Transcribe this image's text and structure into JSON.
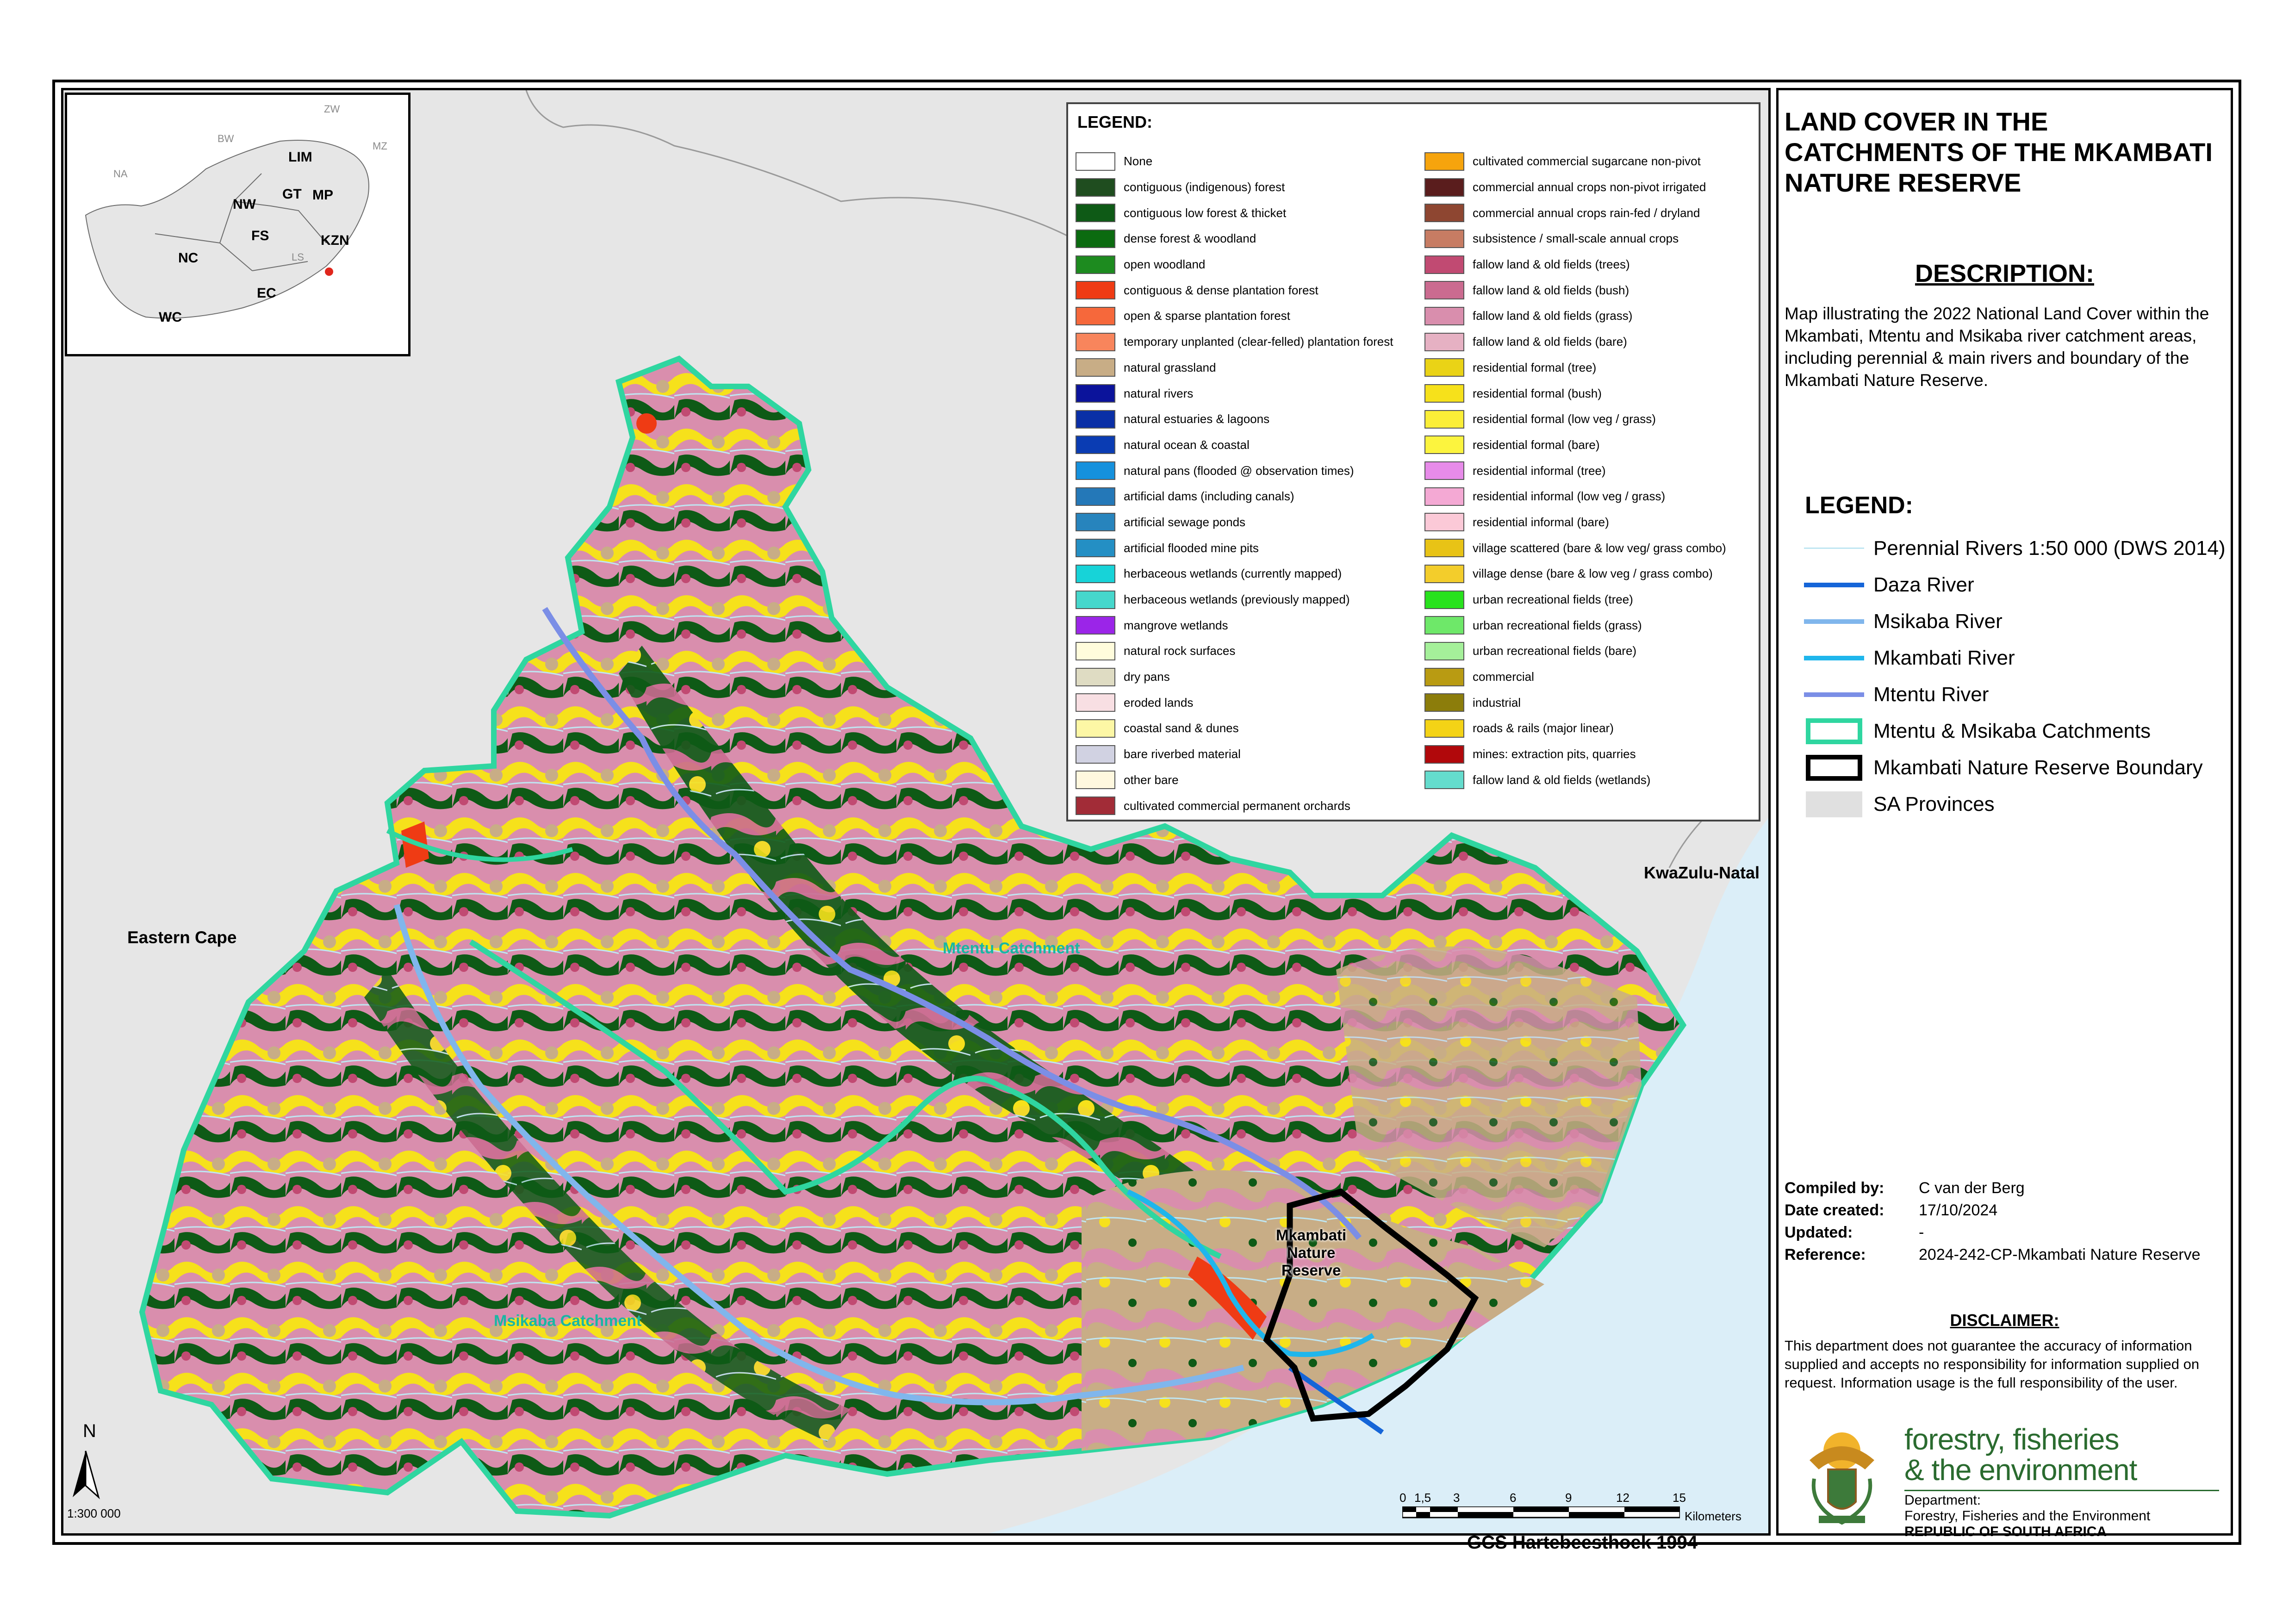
{
  "map": {
    "region_labels": {
      "eastern_cape": "Eastern Cape",
      "kwazulu_natal": "KwaZulu-Natal"
    },
    "catchment_labels": {
      "mtentu": "Mtentu Catchment",
      "msikaba": "Msikaba Catchment",
      "reserve_line1": "Mkambati",
      "reserve_line2": "Nature",
      "reserve_line3": "Reserve"
    },
    "north_label": "N",
    "scale_ratio": "1:300 000",
    "scale_bar": {
      "ticks": [
        "0",
        "1,5",
        "3",
        "6",
        "9",
        "12",
        "15"
      ],
      "unit": "Kilometers"
    },
    "projection": "GCS Hartebeesthoek 1994"
  },
  "inset": {
    "labels": [
      "LIM",
      "NW",
      "GT",
      "MP",
      "FS",
      "KZN",
      "NC",
      "EC",
      "WC"
    ],
    "neighbour_labels": [
      "BW",
      "NA",
      "ZW",
      "MZ",
      "LS"
    ]
  },
  "land_cover_legend": {
    "title": "LEGEND:",
    "col1": [
      {
        "label": "None",
        "color": "#ffffff"
      },
      {
        "label": "contiguous (indigenous) forest",
        "color": "#1f4d1f"
      },
      {
        "label": "contiguous low forest & thicket",
        "color": "#0e5a16"
      },
      {
        "label": "dense forest & woodland",
        "color": "#0b6b10"
      },
      {
        "label": "open woodland",
        "color": "#1d8b1f"
      },
      {
        "label": "contiguous & dense plantation forest",
        "color": "#ef3b14"
      },
      {
        "label": "open & sparse plantation forest",
        "color": "#f6683b"
      },
      {
        "label": "temporary unplanted (clear-felled) plantation forest",
        "color": "#f8855c"
      },
      {
        "label": "natural grassland",
        "color": "#c8ad86"
      },
      {
        "label": "natural rivers",
        "color": "#0b139b"
      },
      {
        "label": "natural estuaries & lagoons",
        "color": "#0a2fa6"
      },
      {
        "label": "natural ocean & coastal",
        "color": "#0a3cb3"
      },
      {
        "label": "natural pans (flooded @ observation times)",
        "color": "#1591dd"
      },
      {
        "label": "artificial dams (including canals)",
        "color": "#2478b8"
      },
      {
        "label": "artificial sewage ponds",
        "color": "#2784bd"
      },
      {
        "label": "artificial flooded mine pits",
        "color": "#248fc4"
      },
      {
        "label": "herbaceous wetlands (currently mapped)",
        "color": "#17d3d8"
      },
      {
        "label": "herbaceous wetlands (previously mapped)",
        "color": "#46d7cc"
      },
      {
        "label": "mangrove wetlands",
        "color": "#9b25e8"
      },
      {
        "label": "natural rock surfaces",
        "color": "#fffcdc"
      },
      {
        "label": "dry pans",
        "color": "#dfdcc3"
      },
      {
        "label": "eroded lands",
        "color": "#f8dfe3"
      },
      {
        "label": "coastal sand & dunes",
        "color": "#fdf7a5"
      },
      {
        "label": "bare riverbed material",
        "color": "#d1d2e2"
      },
      {
        "label": "other bare",
        "color": "#fff8df"
      },
      {
        "label": "cultivated commercial permanent orchards",
        "color": "#a22c37"
      }
    ],
    "col2": [
      {
        "label": "cultivated commercial sugarcane non-pivot",
        "color": "#f6a40d"
      },
      {
        "label": "commercial annual crops non-pivot irrigated",
        "color": "#5a1d1d"
      },
      {
        "label": "commercial annual crops rain-fed / dryland",
        "color": "#8e4631"
      },
      {
        "label": "subsistence / small-scale annual crops",
        "color": "#c77c63"
      },
      {
        "label": "fallow land & old fields (trees)",
        "color": "#c14a72"
      },
      {
        "label": "fallow land & old fields (bush)",
        "color": "#cb6b90"
      },
      {
        "label": "fallow land & old fields (grass)",
        "color": "#d98ead"
      },
      {
        "label": "fallow land & old fields (bare)",
        "color": "#e6b1c3"
      },
      {
        "label": "residential formal (tree)",
        "color": "#ead316"
      },
      {
        "label": "residential formal (bush)",
        "color": "#f6e11b"
      },
      {
        "label": "residential formal (low veg / grass)",
        "color": "#fbee37"
      },
      {
        "label": "residential formal (bare)",
        "color": "#fcf43e"
      },
      {
        "label": "residential informal (tree)",
        "color": "#e78be9"
      },
      {
        "label": "residential informal (low veg / grass)",
        "color": "#f4a9d4"
      },
      {
        "label": "residential informal (bare)",
        "color": "#fbc9d7"
      },
      {
        "label": "village scattered (bare & low veg/ grass combo)",
        "color": "#e8c316"
      },
      {
        "label": "village dense (bare & low veg / grass combo)",
        "color": "#f3cd2b"
      },
      {
        "label": "urban recreational fields (tree)",
        "color": "#28e21d"
      },
      {
        "label": "urban recreational fields (grass)",
        "color": "#6ee869"
      },
      {
        "label": "urban recreational fields (bare)",
        "color": "#a5f09a"
      },
      {
        "label": "commercial",
        "color": "#b99b12"
      },
      {
        "label": "industrial",
        "color": "#8c7d0b"
      },
      {
        "label": "roads & rails (major linear)",
        "color": "#f4d316"
      },
      {
        "label": "mines: extraction pits, quarries",
        "color": "#b1080b"
      },
      {
        "label": "fallow land & old fields (wetlands)",
        "color": "#64dccd"
      }
    ]
  },
  "panel": {
    "title": "LAND COVER IN THE CATCHMENTS OF THE MKAMBATI NATURE RESERVE",
    "description_heading": "DESCRIPTION:",
    "description": "Map illustrating the 2022 National Land Cover within the Mkambati, Mtentu and Msikaba river catchment areas, including perennial & main rivers and boundary of the Mkambati Nature Reserve.",
    "legend_heading": "LEGEND:",
    "legend_items": [
      {
        "label": "Perennial Rivers 1:50 000 (DWS 2014)",
        "kind": "thin-line",
        "color": "#bfe6f2"
      },
      {
        "label": "Daza River",
        "kind": "line",
        "color": "#1565d8"
      },
      {
        "label": "Msikaba River",
        "kind": "line",
        "color": "#80b6ec"
      },
      {
        "label": "Mkambati River",
        "kind": "line",
        "color": "#1fb6ec"
      },
      {
        "label": "Mtentu River",
        "kind": "line",
        "color": "#7b8ee6"
      },
      {
        "label": "Mtentu & Msikaba Catchments",
        "kind": "box-outline",
        "color": "#2fd6a0"
      },
      {
        "label": "Mkambati Nature Reserve Boundary",
        "kind": "box-black",
        "color": "#000000"
      },
      {
        "label": "SA Provinces",
        "kind": "box-fill",
        "color": "#e0e0e0"
      }
    ],
    "meta": [
      {
        "key": "Compiled by:",
        "value": "C van der Berg"
      },
      {
        "key": "Date created:",
        "value": "17/10/2024"
      },
      {
        "key": "Updated:",
        "value": "-"
      },
      {
        "key": "Reference:",
        "value": "2024-242-CP-Mkambati Nature Reserve"
      }
    ],
    "disclaimer_heading": "DISCLAIMER:",
    "disclaimer": "This department does not guarantee the accuracy of information supplied and accepts no responsibility for information supplied on request.  Information usage is the full responsibility of the user.",
    "logo": {
      "line1": "forestry, fisheries",
      "line2": "& the environment",
      "dept1": "Department:",
      "dept2": "Forestry, Fisheries and the Environment",
      "dept3": "REPUBLIC OF SOUTH AFRICA"
    }
  }
}
